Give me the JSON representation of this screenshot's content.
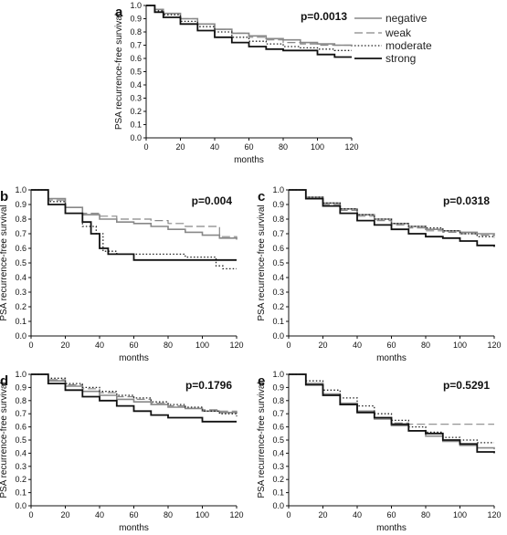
{
  "legend": {
    "items": [
      {
        "label": "negative",
        "dash": "solid",
        "color": "#888888",
        "width": 1.6
      },
      {
        "label": "weak",
        "dash": "longdash",
        "color": "#888888",
        "width": 1.2
      },
      {
        "label": "moderate",
        "dash": "dotted",
        "color": "#222222",
        "width": 1.3
      },
      {
        "label": "strong",
        "dash": "solid",
        "color": "#111111",
        "width": 1.8
      }
    ]
  },
  "chart_data": [
    {
      "panel": "a",
      "type": "line",
      "step": true,
      "ylabel": "PSA recurrence-free survival",
      "xlabel": "months",
      "annotation": "p=0.0013",
      "xlim": [
        0,
        120
      ],
      "ylim": [
        0,
        1
      ],
      "x_ticks": [
        0,
        20,
        40,
        60,
        80,
        100,
        120
      ],
      "y_ticks": [
        0.0,
        0.1,
        0.2,
        0.3,
        0.4,
        0.5,
        0.6,
        0.7,
        0.8,
        0.9,
        1.0
      ],
      "series": [
        {
          "name": "negative",
          "x": [
            0,
            5,
            10,
            20,
            30,
            40,
            50,
            60,
            70,
            80,
            90,
            100,
            110,
            120
          ],
          "y": [
            1.0,
            0.97,
            0.94,
            0.9,
            0.86,
            0.82,
            0.79,
            0.77,
            0.75,
            0.74,
            0.72,
            0.71,
            0.7,
            0.69
          ]
        },
        {
          "name": "weak",
          "x": [
            0,
            5,
            10,
            20,
            30,
            40,
            50,
            60,
            70,
            80,
            90,
            100,
            110,
            120
          ],
          "y": [
            1.0,
            0.97,
            0.94,
            0.9,
            0.86,
            0.82,
            0.79,
            0.76,
            0.74,
            0.72,
            0.71,
            0.7,
            0.7,
            0.7
          ]
        },
        {
          "name": "moderate",
          "x": [
            0,
            5,
            10,
            20,
            30,
            40,
            50,
            60,
            70,
            80,
            90,
            100,
            110,
            120
          ],
          "y": [
            1.0,
            0.96,
            0.93,
            0.88,
            0.84,
            0.8,
            0.76,
            0.73,
            0.71,
            0.69,
            0.68,
            0.67,
            0.66,
            0.66
          ]
        },
        {
          "name": "strong",
          "x": [
            0,
            5,
            10,
            20,
            30,
            40,
            50,
            60,
            70,
            80,
            90,
            100,
            110,
            120
          ],
          "y": [
            1.0,
            0.95,
            0.91,
            0.86,
            0.81,
            0.76,
            0.72,
            0.69,
            0.67,
            0.66,
            0.66,
            0.63,
            0.61,
            0.61
          ]
        }
      ]
    },
    {
      "panel": "b",
      "type": "line",
      "step": true,
      "ylabel": "PSA recurrence-free survival",
      "xlabel": "months",
      "annotation": "p=0.004",
      "xlim": [
        0,
        120
      ],
      "ylim": [
        0,
        1
      ],
      "x_ticks": [
        0,
        20,
        40,
        60,
        80,
        100,
        120
      ],
      "y_ticks": [
        0.0,
        0.1,
        0.2,
        0.3,
        0.4,
        0.5,
        0.6,
        0.7,
        0.8,
        0.9,
        1.0
      ],
      "series": [
        {
          "name": "negative",
          "x": [
            0,
            10,
            20,
            30,
            40,
            50,
            60,
            70,
            80,
            90,
            100,
            110,
            120
          ],
          "y": [
            1.0,
            0.94,
            0.88,
            0.83,
            0.8,
            0.78,
            0.77,
            0.75,
            0.73,
            0.71,
            0.69,
            0.67,
            0.66
          ]
        },
        {
          "name": "weak",
          "x": [
            0,
            10,
            20,
            30,
            40,
            50,
            60,
            70,
            80,
            90,
            100,
            110,
            120
          ],
          "y": [
            1.0,
            0.93,
            0.88,
            0.84,
            0.82,
            0.8,
            0.8,
            0.79,
            0.77,
            0.75,
            0.75,
            0.68,
            0.66
          ]
        },
        {
          "name": "moderate",
          "x": [
            0,
            10,
            20,
            30,
            38,
            42,
            50,
            60,
            70,
            80,
            90,
            100,
            108,
            112,
            120
          ],
          "y": [
            1.0,
            0.92,
            0.84,
            0.75,
            0.7,
            0.58,
            0.56,
            0.56,
            0.56,
            0.56,
            0.54,
            0.54,
            0.48,
            0.46,
            0.46
          ]
        },
        {
          "name": "strong",
          "x": [
            0,
            10,
            20,
            30,
            35,
            40,
            45,
            60,
            80,
            100,
            110,
            120
          ],
          "y": [
            1.0,
            0.9,
            0.84,
            0.78,
            0.7,
            0.6,
            0.56,
            0.52,
            0.52,
            0.52,
            0.52,
            0.52
          ]
        }
      ]
    },
    {
      "panel": "c",
      "type": "line",
      "step": true,
      "ylabel": "PSA recurrence-free survival",
      "xlabel": "months",
      "annotation": "p=0.0318",
      "xlim": [
        0,
        120
      ],
      "ylim": [
        0,
        1
      ],
      "x_ticks": [
        0,
        20,
        40,
        60,
        80,
        100,
        120
      ],
      "y_ticks": [
        0.0,
        0.1,
        0.2,
        0.3,
        0.4,
        0.5,
        0.6,
        0.7,
        0.8,
        0.9,
        1.0
      ],
      "series": [
        {
          "name": "negative",
          "x": [
            0,
            10,
            20,
            30,
            40,
            50,
            60,
            70,
            80,
            90,
            100,
            110,
            120
          ],
          "y": [
            1.0,
            0.95,
            0.91,
            0.87,
            0.83,
            0.8,
            0.77,
            0.75,
            0.73,
            0.72,
            0.71,
            0.7,
            0.69
          ]
        },
        {
          "name": "weak",
          "x": [
            0,
            10,
            20,
            30,
            40,
            50,
            60,
            70,
            80,
            90,
            100,
            110,
            120
          ],
          "y": [
            1.0,
            0.95,
            0.9,
            0.86,
            0.82,
            0.79,
            0.76,
            0.74,
            0.72,
            0.71,
            0.7,
            0.69,
            0.68
          ]
        },
        {
          "name": "moderate",
          "x": [
            0,
            10,
            20,
            30,
            40,
            50,
            60,
            70,
            80,
            90,
            100,
            110,
            120
          ],
          "y": [
            1.0,
            0.95,
            0.91,
            0.87,
            0.83,
            0.8,
            0.77,
            0.75,
            0.74,
            0.72,
            0.7,
            0.68,
            0.67
          ]
        },
        {
          "name": "strong",
          "x": [
            0,
            10,
            20,
            30,
            40,
            50,
            60,
            70,
            80,
            90,
            100,
            110,
            120
          ],
          "y": [
            1.0,
            0.94,
            0.89,
            0.84,
            0.79,
            0.76,
            0.73,
            0.7,
            0.68,
            0.67,
            0.65,
            0.62,
            0.61
          ]
        }
      ]
    },
    {
      "panel": "d",
      "type": "line",
      "step": true,
      "ylabel": "PSA recurrence-free survival",
      "xlabel": "months",
      "annotation": "p=0.1796",
      "xlim": [
        0,
        120
      ],
      "ylim": [
        0,
        1
      ],
      "x_ticks": [
        0,
        20,
        40,
        60,
        80,
        100,
        120
      ],
      "y_ticks": [
        0.0,
        0.1,
        0.2,
        0.3,
        0.4,
        0.5,
        0.6,
        0.7,
        0.8,
        0.9,
        1.0
      ],
      "series": [
        {
          "name": "negative",
          "x": [
            0,
            10,
            20,
            30,
            40,
            50,
            60,
            70,
            80,
            90,
            100,
            110,
            120
          ],
          "y": [
            1.0,
            0.95,
            0.91,
            0.87,
            0.84,
            0.81,
            0.79,
            0.77,
            0.75,
            0.74,
            0.72,
            0.71,
            0.7
          ]
        },
        {
          "name": "weak",
          "x": [
            0,
            10,
            20,
            30,
            40,
            50,
            60,
            70,
            80,
            90,
            100,
            110,
            120
          ],
          "y": [
            1.0,
            0.96,
            0.92,
            0.89,
            0.86,
            0.83,
            0.81,
            0.78,
            0.76,
            0.74,
            0.73,
            0.72,
            0.71
          ]
        },
        {
          "name": "moderate",
          "x": [
            0,
            10,
            20,
            30,
            40,
            50,
            60,
            70,
            80,
            90,
            100,
            110,
            120
          ],
          "y": [
            1.0,
            0.97,
            0.93,
            0.9,
            0.87,
            0.84,
            0.82,
            0.79,
            0.77,
            0.75,
            0.72,
            0.7,
            0.68
          ]
        },
        {
          "name": "strong",
          "x": [
            0,
            10,
            20,
            30,
            40,
            50,
            60,
            70,
            80,
            90,
            100,
            110,
            120
          ],
          "y": [
            1.0,
            0.93,
            0.88,
            0.83,
            0.8,
            0.76,
            0.72,
            0.69,
            0.67,
            0.67,
            0.64,
            0.64,
            0.64
          ]
        }
      ]
    },
    {
      "panel": "e",
      "type": "line",
      "step": true,
      "ylabel": "PSA recurrence-free survival",
      "xlabel": "months",
      "annotation": "p=0.5291",
      "xlim": [
        0,
        120
      ],
      "ylim": [
        0,
        1
      ],
      "x_ticks": [
        0,
        20,
        40,
        60,
        80,
        100,
        120
      ],
      "y_ticks": [
        0.0,
        0.1,
        0.2,
        0.3,
        0.4,
        0.5,
        0.6,
        0.7,
        0.8,
        0.9,
        1.0
      ],
      "series": [
        {
          "name": "negative",
          "x": [
            0,
            10,
            20,
            30,
            40,
            50,
            60,
            70,
            80,
            90,
            100,
            110,
            120
          ],
          "y": [
            1.0,
            0.93,
            0.85,
            0.78,
            0.72,
            0.66,
            0.61,
            0.57,
            0.53,
            0.49,
            0.46,
            0.44,
            0.43
          ]
        },
        {
          "name": "weak",
          "x": [
            0,
            10,
            20,
            30,
            40,
            50,
            60,
            70,
            80,
            90,
            100,
            110,
            120
          ],
          "y": [
            1.0,
            0.93,
            0.85,
            0.78,
            0.72,
            0.67,
            0.63,
            0.62,
            0.62,
            0.62,
            0.62,
            0.62,
            0.62
          ]
        },
        {
          "name": "moderate",
          "x": [
            0,
            10,
            20,
            30,
            40,
            50,
            60,
            70,
            80,
            90,
            100,
            110,
            120
          ],
          "y": [
            1.0,
            0.95,
            0.88,
            0.82,
            0.76,
            0.7,
            0.65,
            0.6,
            0.56,
            0.52,
            0.5,
            0.48,
            0.48
          ]
        },
        {
          "name": "strong",
          "x": [
            0,
            10,
            20,
            30,
            40,
            50,
            60,
            70,
            80,
            90,
            100,
            110,
            120
          ],
          "y": [
            1.0,
            0.92,
            0.84,
            0.77,
            0.71,
            0.67,
            0.62,
            0.57,
            0.55,
            0.5,
            0.47,
            0.41,
            0.4
          ]
        }
      ]
    }
  ]
}
